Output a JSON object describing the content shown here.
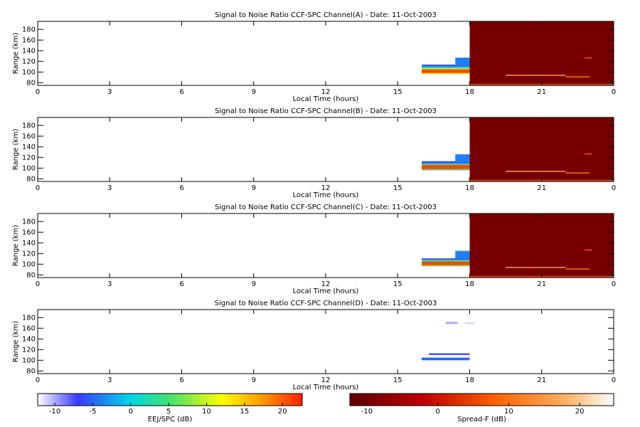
{
  "chart_data": [
    {
      "type": "heatmap",
      "title": "Signal to Noise Ratio CCF-SPC Channel(A) - Date: 11-Oct-2003",
      "xlabel": "Local Time (hours)",
      "ylabel": "Range (km)",
      "xlim": [
        0,
        24
      ],
      "xticks": [
        0,
        3,
        6,
        9,
        12,
        15,
        18,
        21,
        {
          "value": 24,
          "label": "0"
        }
      ],
      "ylim": [
        75,
        195
      ],
      "yticks": [
        80,
        100,
        120,
        140,
        160,
        180
      ],
      "cells": [
        {
          "x": [
            18,
            24
          ],
          "y": [
            75,
            195
          ],
          "value": -10,
          "colorbar": 1
        },
        {
          "x": [
            16,
            18
          ],
          "y": [
            110,
            114
          ],
          "value": -6,
          "colorbar": 0
        },
        {
          "x": [
            17.4,
            18
          ],
          "y": [
            112,
            127
          ],
          "value": -4,
          "colorbar": 0
        },
        {
          "x": [
            16,
            18
          ],
          "y": [
            107,
            110
          ],
          "value": 2,
          "colorbar": 0
        },
        {
          "x": [
            16,
            18
          ],
          "y": [
            105,
            107
          ],
          "value": 10,
          "colorbar": 0
        },
        {
          "x": [
            16,
            18
          ],
          "y": [
            98,
            105
          ],
          "value": 21,
          "colorbar": 0
        },
        {
          "x": [
            16,
            18
          ],
          "y": [
            96,
            98
          ],
          "value": 13,
          "colorbar": 0
        },
        {
          "x": [
            19.5,
            22
          ],
          "y": [
            93,
            95
          ],
          "value": 15,
          "colorbar": 1
        },
        {
          "x": [
            22,
            23
          ],
          "y": [
            90,
            92
          ],
          "value": 10,
          "colorbar": 1
        },
        {
          "x": [
            18,
            24
          ],
          "y": [
            76,
            78
          ],
          "value": 6,
          "colorbar": 1
        },
        {
          "x": [
            22.8,
            23.1
          ],
          "y": [
            125,
            128
          ],
          "value": 4,
          "colorbar": 1
        }
      ]
    },
    {
      "type": "heatmap",
      "title": "Signal to Noise Ratio CCF-SPC Channel(B) - Date: 11-Oct-2003",
      "xlabel": "Local Time (hours)",
      "ylabel": "Range (km)",
      "xlim": [
        0,
        24
      ],
      "xticks": [
        0,
        3,
        6,
        9,
        12,
        15,
        18,
        21,
        {
          "value": 24,
          "label": "0"
        }
      ],
      "ylim": [
        75,
        195
      ],
      "yticks": [
        80,
        100,
        120,
        140,
        160,
        180
      ],
      "cells": [
        {
          "x": [
            18,
            24
          ],
          "y": [
            75,
            195
          ],
          "value": -10,
          "colorbar": 1
        },
        {
          "x": [
            16,
            18
          ],
          "y": [
            109,
            113
          ],
          "value": -6,
          "colorbar": 0
        },
        {
          "x": [
            17.4,
            18
          ],
          "y": [
            111,
            126
          ],
          "value": -4,
          "colorbar": 0
        },
        {
          "x": [
            16,
            18
          ],
          "y": [
            106,
            109
          ],
          "value": 2,
          "colorbar": 0
        },
        {
          "x": [
            16,
            18
          ],
          "y": [
            98,
            106
          ],
          "value": 21,
          "colorbar": 0
        },
        {
          "x": [
            16,
            18
          ],
          "y": [
            96,
            98
          ],
          "value": 4,
          "colorbar": 0
        },
        {
          "x": [
            19.5,
            22
          ],
          "y": [
            93,
            95
          ],
          "value": 15,
          "colorbar": 1
        },
        {
          "x": [
            22,
            23
          ],
          "y": [
            90,
            92
          ],
          "value": 10,
          "colorbar": 1
        },
        {
          "x": [
            18,
            24
          ],
          "y": [
            76,
            78
          ],
          "value": 6,
          "colorbar": 1
        },
        {
          "x": [
            22.8,
            23.1
          ],
          "y": [
            125,
            128
          ],
          "value": 4,
          "colorbar": 1
        }
      ]
    },
    {
      "type": "heatmap",
      "title": "Signal to Noise Ratio CCF-SPC Channel(C) - Date: 11-Oct-2003",
      "xlabel": "Local Time (hours)",
      "ylabel": "Range (km)",
      "xlim": [
        0,
        24
      ],
      "xticks": [
        0,
        3,
        6,
        9,
        12,
        15,
        18,
        21,
        {
          "value": 24,
          "label": "0"
        }
      ],
      "ylim": [
        75,
        195
      ],
      "yticks": [
        80,
        100,
        120,
        140,
        160,
        180
      ],
      "cells": [
        {
          "x": [
            18,
            24
          ],
          "y": [
            75,
            195
          ],
          "value": -10,
          "colorbar": 1
        },
        {
          "x": [
            16,
            18
          ],
          "y": [
            108,
            111
          ],
          "value": -6,
          "colorbar": 0
        },
        {
          "x": [
            17.4,
            18
          ],
          "y": [
            110,
            125
          ],
          "value": -4,
          "colorbar": 0
        },
        {
          "x": [
            16,
            18
          ],
          "y": [
            105,
            108
          ],
          "value": 4,
          "colorbar": 0
        },
        {
          "x": [
            16,
            18
          ],
          "y": [
            98,
            105
          ],
          "value": 21,
          "colorbar": 0
        },
        {
          "x": [
            16,
            18
          ],
          "y": [
            96,
            98
          ],
          "value": 6,
          "colorbar": 0
        },
        {
          "x": [
            19.5,
            22
          ],
          "y": [
            93,
            95
          ],
          "value": 15,
          "colorbar": 1
        },
        {
          "x": [
            22,
            23
          ],
          "y": [
            90,
            92
          ],
          "value": 10,
          "colorbar": 1
        },
        {
          "x": [
            18,
            24
          ],
          "y": [
            76,
            78
          ],
          "value": 6,
          "colorbar": 1
        },
        {
          "x": [
            22.8,
            23.1
          ],
          "y": [
            125,
            128
          ],
          "value": 4,
          "colorbar": 1
        }
      ]
    },
    {
      "type": "heatmap",
      "title": "Signal to Noise Ratio CCF-SPC Channel(D) - Date: 11-Oct-2003",
      "xlabel": "Local Time (hours)",
      "ylabel": "Range (km)",
      "xlim": [
        0,
        24
      ],
      "xticks": [
        0,
        3,
        6,
        9,
        12,
        15,
        18,
        21,
        {
          "value": 24,
          "label": "0"
        }
      ],
      "ylim": [
        75,
        195
      ],
      "yticks": [
        80,
        100,
        120,
        140,
        160,
        180
      ],
      "cells": [
        {
          "x": [
            16,
            18
          ],
          "y": [
            100,
            105
          ],
          "value": -5,
          "colorbar": 0
        },
        {
          "x": [
            16.3,
            18
          ],
          "y": [
            110,
            113
          ],
          "value": -7,
          "colorbar": 0
        },
        {
          "x": [
            17,
            17.5
          ],
          "y": [
            168,
            172
          ],
          "value": -10,
          "colorbar": 0
        },
        {
          "x": [
            17.8,
            18.2
          ],
          "y": [
            168,
            171
          ],
          "value": -11,
          "colorbar": 0
        }
      ]
    }
  ],
  "colorbars": [
    {
      "label": "EEJ/SPC (dB)",
      "lim": [
        -12.25,
        22.6
      ],
      "ticks": [
        -10,
        -5,
        0,
        5,
        10,
        15,
        20
      ],
      "colormap": [
        [
          -12.25,
          "#ffffff"
        ],
        [
          -7,
          "#3a3aff"
        ],
        [
          0,
          "#00d8e8"
        ],
        [
          5,
          "#40e070"
        ],
        [
          12,
          "#ffff00"
        ],
        [
          17,
          "#ffa000"
        ],
        [
          22.6,
          "#ff2000"
        ]
      ]
    },
    {
      "label": "Spread-F (dB)",
      "lim": [
        -12.4,
        24.8
      ],
      "ticks": [
        -10,
        0,
        10,
        20
      ],
      "colormap": [
        [
          -12.4,
          "#600000"
        ],
        [
          -2,
          "#c00000"
        ],
        [
          8,
          "#ff6000"
        ],
        [
          18,
          "#ffb060"
        ],
        [
          24.8,
          "#ffffff"
        ]
      ]
    }
  ]
}
